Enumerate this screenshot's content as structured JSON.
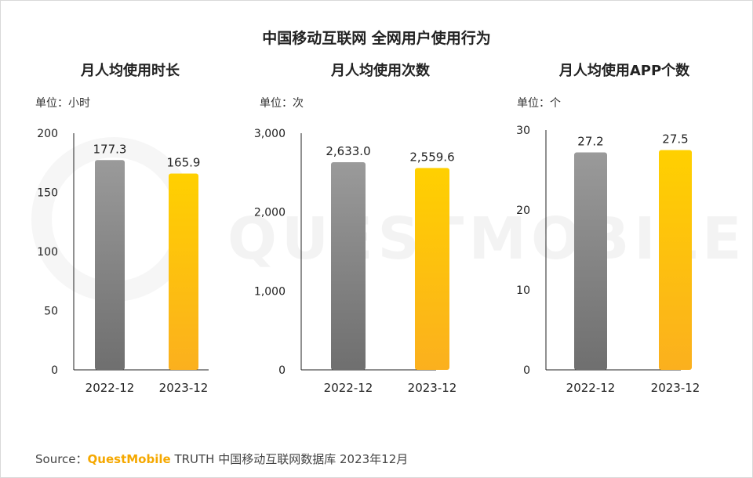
{
  "title": "中国移动互联网 全网用户使用行为",
  "watermark": "QUESTMOBILE",
  "colors": {
    "bar_2022_top": "#9a9a9a",
    "bar_2022_bottom": "#6f6f6f",
    "bar_2023_top": "#ffd000",
    "bar_2023_bottom": "#fbb01e",
    "brand": "#f5a800"
  },
  "chart_data": [
    {
      "type": "bar",
      "title": "月人均使用时长",
      "unit": "单位：小时",
      "categories": [
        "2022-12",
        "2023-12"
      ],
      "values": [
        177.3,
        165.9
      ],
      "value_labels": [
        "177.3",
        "165.9"
      ],
      "ylim": [
        0,
        200
      ],
      "yticks": [
        0,
        50,
        100,
        150,
        200
      ],
      "ytick_labels": [
        "0",
        "50",
        "100",
        "150",
        "200"
      ]
    },
    {
      "type": "bar",
      "title": "月人均使用次数",
      "unit": "单位：次",
      "categories": [
        "2022-12",
        "2023-12"
      ],
      "values": [
        2633.0,
        2559.6
      ],
      "value_labels": [
        "2,633.0",
        "2,559.6"
      ],
      "ylim": [
        0,
        3000
      ],
      "yticks": [
        0,
        1000,
        2000,
        3000
      ],
      "ytick_labels": [
        "0",
        "1,000",
        "2,000",
        "3,000"
      ]
    },
    {
      "type": "bar",
      "title": "月人均使用APP个数",
      "unit": "单位：个",
      "categories": [
        "2022-12",
        "2023-12"
      ],
      "values": [
        27.2,
        27.5
      ],
      "value_labels": [
        "27.2",
        "27.5"
      ],
      "ylim": [
        0,
        30
      ],
      "yticks": [
        0,
        10,
        20,
        30
      ],
      "ytick_labels": [
        "0",
        "10",
        "20",
        "30"
      ]
    }
  ],
  "footer": {
    "prefix": "Source：",
    "brand": "QuestMobile",
    "suffix": " TRUTH 中国移动互联网数据库 2023年12月"
  }
}
